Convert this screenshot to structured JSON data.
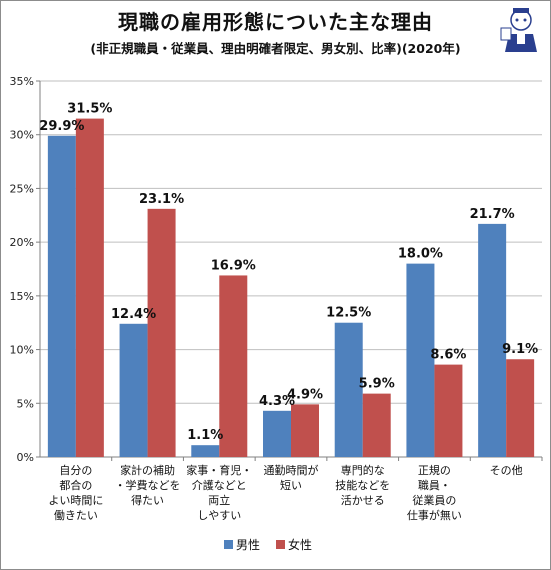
{
  "header": {
    "title": "現職の雇用形態についた主な理由",
    "subtitle": "(非正規職員・従業員、理由明確者限定、男女別、比率)(2020年)"
  },
  "colors": {
    "male": "#4f81bd",
    "female": "#c0504d",
    "grid": "#bfbfbf",
    "axis": "#808080"
  },
  "chart_data": {
    "type": "bar",
    "categories": [
      [
        "自分の",
        "都合の",
        "よい時間に",
        "働きたい"
      ],
      [
        "家計の補助",
        "・学費などを",
        "得たい"
      ],
      [
        "家事・育児・",
        "介護などと",
        "両立",
        "しやすい"
      ],
      [
        "通勤時間が",
        "短い"
      ],
      [
        "専門的な",
        "技能などを",
        "活かせる"
      ],
      [
        "正規の",
        "職員・",
        "従業員の",
        "仕事が無い"
      ],
      [
        "その他"
      ]
    ],
    "series": [
      {
        "name": "男性",
        "values": [
          29.9,
          12.4,
          1.1,
          4.3,
          12.5,
          18.0,
          21.7
        ]
      },
      {
        "name": "女性",
        "values": [
          31.5,
          23.1,
          16.9,
          4.9,
          5.9,
          8.6,
          9.1
        ]
      }
    ],
    "yticks": [
      "0%",
      "5%",
      "10%",
      "15%",
      "20%",
      "25%",
      "30%",
      "35%"
    ],
    "ylim": [
      0,
      35
    ],
    "grid": true,
    "legend": "bottom"
  }
}
